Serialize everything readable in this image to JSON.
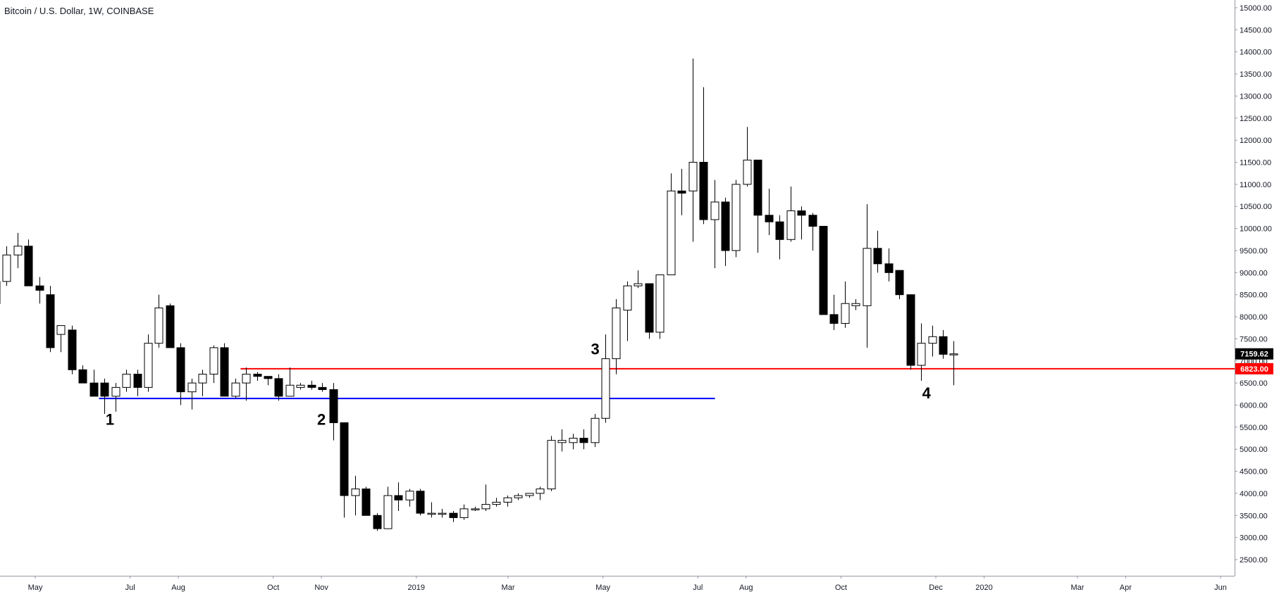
{
  "chart_data": {
    "type": "candlestick",
    "title": "Bitcoin / U.S. Dollar, 1W, COINBASE",
    "ylim": [
      2100,
      15300
    ],
    "y_ticks": [
      "2500.00",
      "3000.00",
      "3500.00",
      "4000.00",
      "4500.00",
      "5000.00",
      "5500.00",
      "6000.00",
      "6500.00",
      "7000.00",
      "7500.00",
      "8000.00",
      "8500.00",
      "9000.00",
      "9500.00",
      "10000.00",
      "10500.00",
      "11000.00",
      "11500.00",
      "12000.00",
      "12500.00",
      "13000.00",
      "13500.00",
      "14000.00",
      "14500.00",
      "15000.00"
    ],
    "x_ticks": [
      {
        "label": "May",
        "date": "2018-05-01"
      },
      {
        "label": "Jul",
        "date": "2018-07-01"
      },
      {
        "label": "Aug",
        "date": "2018-08-01"
      },
      {
        "label": "Oct",
        "date": "2018-10-01"
      },
      {
        "label": "Nov",
        "date": "2018-11-01"
      },
      {
        "label": "2019",
        "date": "2019-01-01"
      },
      {
        "label": "Mar",
        "date": "2019-03-01"
      },
      {
        "label": "May",
        "date": "2019-05-01"
      },
      {
        "label": "Jul",
        "date": "2019-07-01"
      },
      {
        "label": "Aug",
        "date": "2019-08-01"
      },
      {
        "label": "Oct",
        "date": "2019-10-01"
      },
      {
        "label": "Dec",
        "date": "2019-12-01"
      },
      {
        "label": "2020",
        "date": "2020-01-01"
      },
      {
        "label": "Mar",
        "date": "2020-03-01"
      },
      {
        "label": "Apr",
        "date": "2020-04-01"
      },
      {
        "label": "Jun",
        "date": "2020-06-01"
      }
    ],
    "candles": [
      {
        "date": "2018-04-02",
        "open": 8300,
        "high": 9000,
        "low": 7800,
        "close": 8800
      },
      {
        "date": "2018-04-09",
        "open": 8800,
        "high": 9600,
        "low": 8700,
        "close": 9400
      },
      {
        "date": "2018-04-16",
        "open": 9400,
        "high": 9900,
        "low": 9100,
        "close": 9600
      },
      {
        "date": "2018-04-23",
        "open": 9600,
        "high": 9750,
        "low": 8700,
        "close": 8700
      },
      {
        "date": "2018-04-30",
        "open": 8700,
        "high": 8900,
        "low": 8300,
        "close": 8600
      },
      {
        "date": "2018-05-07",
        "open": 8500,
        "high": 8700,
        "low": 7200,
        "close": 7300
      },
      {
        "date": "2018-05-14",
        "open": 7600,
        "high": 7800,
        "low": 7200,
        "close": 7800
      },
      {
        "date": "2018-05-21",
        "open": 7700,
        "high": 7800,
        "low": 6700,
        "close": 6800
      },
      {
        "date": "2018-05-28",
        "open": 6800,
        "high": 6900,
        "low": 6500,
        "close": 6500
      },
      {
        "date": "2018-06-04",
        "open": 6500,
        "high": 6800,
        "low": 6200,
        "close": 6200
      },
      {
        "date": "2018-06-11",
        "open": 6500,
        "high": 6600,
        "low": 5800,
        "close": 6200
      },
      {
        "date": "2018-06-18",
        "open": 6200,
        "high": 6500,
        "low": 5850,
        "close": 6400
      },
      {
        "date": "2018-06-25",
        "open": 6400,
        "high": 6800,
        "low": 6300,
        "close": 6700
      },
      {
        "date": "2018-07-02",
        "open": 6700,
        "high": 6800,
        "low": 6200,
        "close": 6400
      },
      {
        "date": "2018-07-09",
        "open": 6400,
        "high": 7600,
        "low": 6300,
        "close": 7400
      },
      {
        "date": "2018-07-16",
        "open": 7400,
        "high": 8500,
        "low": 7300,
        "close": 8200
      },
      {
        "date": "2018-07-23",
        "open": 8250,
        "high": 8300,
        "low": 7300,
        "close": 7300
      },
      {
        "date": "2018-07-30",
        "open": 7300,
        "high": 7400,
        "low": 6000,
        "close": 6300
      },
      {
        "date": "2018-08-06",
        "open": 6300,
        "high": 6600,
        "low": 5900,
        "close": 6500
      },
      {
        "date": "2018-08-13",
        "open": 6500,
        "high": 6800,
        "low": 6200,
        "close": 6700
      },
      {
        "date": "2018-08-20",
        "open": 6700,
        "high": 7350,
        "low": 6500,
        "close": 7300
      },
      {
        "date": "2018-08-27",
        "open": 7300,
        "high": 7400,
        "low": 6200,
        "close": 6200
      },
      {
        "date": "2018-09-03",
        "open": 6200,
        "high": 6600,
        "low": 6150,
        "close": 6500
      },
      {
        "date": "2018-09-10",
        "open": 6500,
        "high": 6850,
        "low": 6100,
        "close": 6700
      },
      {
        "date": "2018-09-17",
        "open": 6700,
        "high": 6750,
        "low": 6550,
        "close": 6650
      },
      {
        "date": "2018-09-24",
        "open": 6650,
        "high": 6650,
        "low": 6450,
        "close": 6600
      },
      {
        "date": "2018-10-01",
        "open": 6600,
        "high": 6700,
        "low": 6100,
        "close": 6200
      },
      {
        "date": "2018-10-08",
        "open": 6200,
        "high": 6850,
        "low": 6200,
        "close": 6450
      },
      {
        "date": "2018-10-15",
        "open": 6400,
        "high": 6500,
        "low": 6350,
        "close": 6450
      },
      {
        "date": "2018-10-22",
        "open": 6450,
        "high": 6550,
        "low": 6350,
        "close": 6400
      },
      {
        "date": "2018-10-29",
        "open": 6400,
        "high": 6500,
        "low": 6300,
        "close": 6350
      },
      {
        "date": "2018-11-05",
        "open": 6350,
        "high": 6500,
        "low": 5200,
        "close": 5600
      },
      {
        "date": "2018-11-12",
        "open": 5600,
        "high": 5600,
        "low": 3450,
        "close": 3950
      },
      {
        "date": "2018-11-19",
        "open": 3950,
        "high": 4400,
        "low": 3500,
        "close": 4100
      },
      {
        "date": "2018-11-26",
        "open": 4100,
        "high": 4150,
        "low": 3500,
        "close": 3500
      },
      {
        "date": "2018-12-03",
        "open": 3500,
        "high": 3550,
        "low": 3150,
        "close": 3200
      },
      {
        "date": "2018-12-10",
        "open": 3200,
        "high": 4150,
        "low": 3200,
        "close": 3950
      },
      {
        "date": "2018-12-17",
        "open": 3950,
        "high": 4250,
        "low": 3600,
        "close": 3850
      },
      {
        "date": "2018-12-24",
        "open": 3850,
        "high": 4100,
        "low": 3700,
        "close": 4050
      },
      {
        "date": "2018-12-31",
        "open": 4050,
        "high": 4100,
        "low": 3500,
        "close": 3550
      },
      {
        "date": "2019-01-07",
        "open": 3550,
        "high": 3800,
        "low": 3450,
        "close": 3550
      },
      {
        "date": "2019-01-14",
        "open": 3550,
        "high": 3650,
        "low": 3450,
        "close": 3550
      },
      {
        "date": "2019-01-21",
        "open": 3550,
        "high": 3600,
        "low": 3350,
        "close": 3450
      },
      {
        "date": "2019-01-28",
        "open": 3450,
        "high": 3750,
        "low": 3400,
        "close": 3650
      },
      {
        "date": "2019-02-04",
        "open": 3650,
        "high": 3700,
        "low": 3600,
        "close": 3650
      },
      {
        "date": "2019-02-11",
        "open": 3650,
        "high": 4200,
        "low": 3600,
        "close": 3750
      },
      {
        "date": "2019-02-18",
        "open": 3750,
        "high": 3900,
        "low": 3700,
        "close": 3800
      },
      {
        "date": "2019-02-25",
        "open": 3800,
        "high": 3950,
        "low": 3700,
        "close": 3900
      },
      {
        "date": "2019-03-04",
        "open": 3900,
        "high": 4000,
        "low": 3850,
        "close": 3950
      },
      {
        "date": "2019-03-11",
        "open": 3950,
        "high": 4000,
        "low": 3900,
        "close": 4000
      },
      {
        "date": "2019-03-18",
        "open": 4000,
        "high": 4150,
        "low": 3850,
        "close": 4100
      },
      {
        "date": "2019-03-25",
        "open": 4100,
        "high": 5300,
        "low": 4050,
        "close": 5200
      },
      {
        "date": "2019-04-01",
        "open": 5150,
        "high": 5450,
        "low": 4950,
        "close": 5200
      },
      {
        "date": "2019-04-08",
        "open": 5150,
        "high": 5350,
        "low": 5000,
        "close": 5250
      },
      {
        "date": "2019-04-15",
        "open": 5250,
        "high": 5450,
        "low": 5000,
        "close": 5150
      },
      {
        "date": "2019-04-22",
        "open": 5150,
        "high": 5800,
        "low": 5050,
        "close": 5700
      },
      {
        "date": "2019-04-29",
        "open": 5700,
        "high": 7600,
        "low": 5600,
        "close": 7050
      },
      {
        "date": "2019-05-06",
        "open": 7050,
        "high": 8400,
        "low": 6700,
        "close": 8200
      },
      {
        "date": "2019-05-13",
        "open": 8150,
        "high": 8800,
        "low": 7450,
        "close": 8700
      },
      {
        "date": "2019-05-20",
        "open": 8700,
        "high": 9050,
        "low": 8650,
        "close": 8750
      },
      {
        "date": "2019-05-27",
        "open": 8750,
        "high": 8750,
        "low": 7500,
        "close": 7650
      },
      {
        "date": "2019-06-03",
        "open": 7650,
        "high": 8950,
        "low": 7500,
        "close": 8950
      },
      {
        "date": "2019-06-10",
        "open": 8950,
        "high": 11250,
        "low": 8950,
        "close": 10850
      },
      {
        "date": "2019-06-17",
        "open": 10850,
        "high": 11350,
        "low": 10300,
        "close": 10800
      },
      {
        "date": "2019-06-24",
        "open": 10850,
        "high": 13850,
        "low": 9700,
        "close": 11500
      },
      {
        "date": "2019-07-01",
        "open": 11500,
        "high": 13200,
        "low": 10100,
        "close": 10200
      },
      {
        "date": "2019-07-08",
        "open": 10200,
        "high": 11100,
        "low": 9100,
        "close": 10600
      },
      {
        "date": "2019-07-15",
        "open": 10600,
        "high": 10700,
        "low": 9150,
        "close": 9500
      },
      {
        "date": "2019-07-22",
        "open": 9500,
        "high": 11100,
        "low": 9350,
        "close": 11000
      },
      {
        "date": "2019-07-29",
        "open": 11000,
        "high": 12300,
        "low": 10950,
        "close": 11550
      },
      {
        "date": "2019-08-05",
        "open": 11550,
        "high": 11550,
        "low": 9450,
        "close": 10300
      },
      {
        "date": "2019-08-12",
        "open": 10300,
        "high": 10900,
        "low": 9850,
        "close": 10150
      },
      {
        "date": "2019-08-19",
        "open": 10150,
        "high": 10300,
        "low": 9300,
        "close": 9750
      },
      {
        "date": "2019-08-26",
        "open": 9750,
        "high": 10950,
        "low": 9700,
        "close": 10400
      },
      {
        "date": "2019-09-02",
        "open": 10400,
        "high": 10500,
        "low": 9750,
        "close": 10300
      },
      {
        "date": "2019-09-09",
        "open": 10300,
        "high": 10350,
        "low": 9500,
        "close": 10050
      },
      {
        "date": "2019-09-16",
        "open": 10050,
        "high": 10050,
        "low": 8050,
        "close": 8050
      },
      {
        "date": "2019-09-23",
        "open": 8050,
        "high": 8500,
        "low": 7700,
        "close": 7850
      },
      {
        "date": "2019-09-30",
        "open": 7850,
        "high": 8800,
        "low": 7750,
        "close": 8300
      },
      {
        "date": "2019-10-07",
        "open": 8250,
        "high": 8400,
        "low": 8150,
        "close": 8300
      },
      {
        "date": "2019-10-14",
        "open": 8250,
        "high": 10550,
        "low": 7300,
        "close": 9550
      },
      {
        "date": "2019-10-21",
        "open": 9550,
        "high": 9950,
        "low": 9000,
        "close": 9200
      },
      {
        "date": "2019-10-28",
        "open": 9200,
        "high": 9550,
        "low": 8800,
        "close": 9000
      },
      {
        "date": "2019-11-04",
        "open": 9050,
        "high": 9050,
        "low": 8400,
        "close": 8500
      },
      {
        "date": "2019-11-11",
        "open": 8500,
        "high": 8500,
        "low": 6800,
        "close": 6900
      },
      {
        "date": "2019-11-18",
        "open": 6900,
        "high": 7850,
        "low": 6550,
        "close": 7400
      },
      {
        "date": "2019-11-25",
        "open": 7400,
        "high": 7800,
        "low": 7100,
        "close": 7550
      },
      {
        "date": "2019-12-02",
        "open": 7550,
        "high": 7700,
        "low": 7050,
        "close": 7150
      },
      {
        "date": "2019-12-09",
        "open": 7150,
        "high": 7450,
        "low": 6450,
        "close": 7160
      }
    ],
    "lines": [
      {
        "name": "resistance-red",
        "color": "#ff0000",
        "value": 6823,
        "from": "2018-09-10",
        "to": "2020-07-01"
      },
      {
        "name": "support-blue",
        "color": "#0000ff",
        "value": 6150,
        "from": "2018-06-11",
        "to": "2019-07-12"
      }
    ],
    "annotations": [
      {
        "label": "1",
        "date": "2018-06-18",
        "value": 5550
      },
      {
        "label": "2",
        "date": "2018-11-01",
        "value": 5550
      },
      {
        "label": "3",
        "date": "2019-04-26",
        "value": 7150
      },
      {
        "label": "4",
        "date": "2019-11-25",
        "value": 6150
      }
    ],
    "price_badges": [
      {
        "label": "7159.62",
        "value": 7159.62,
        "color": "#000000"
      },
      {
        "label": "6823.00",
        "value": 6823.0,
        "color": "#ff0000"
      }
    ]
  }
}
